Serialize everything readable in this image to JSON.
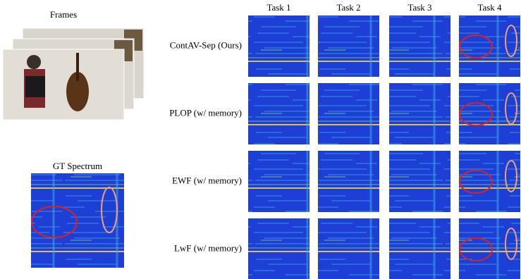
{
  "frames_label": "Frames",
  "gt_label": "GT Spectrum",
  "tasks": [
    "Task 1",
    "Task 2",
    "Task 3",
    "Task 4"
  ],
  "methods": [
    "ContAV-Sep (Ours)",
    "PLOP (w/ memory)",
    "EWF (w/ memory)",
    "LwF (w/ memory)"
  ]
}
